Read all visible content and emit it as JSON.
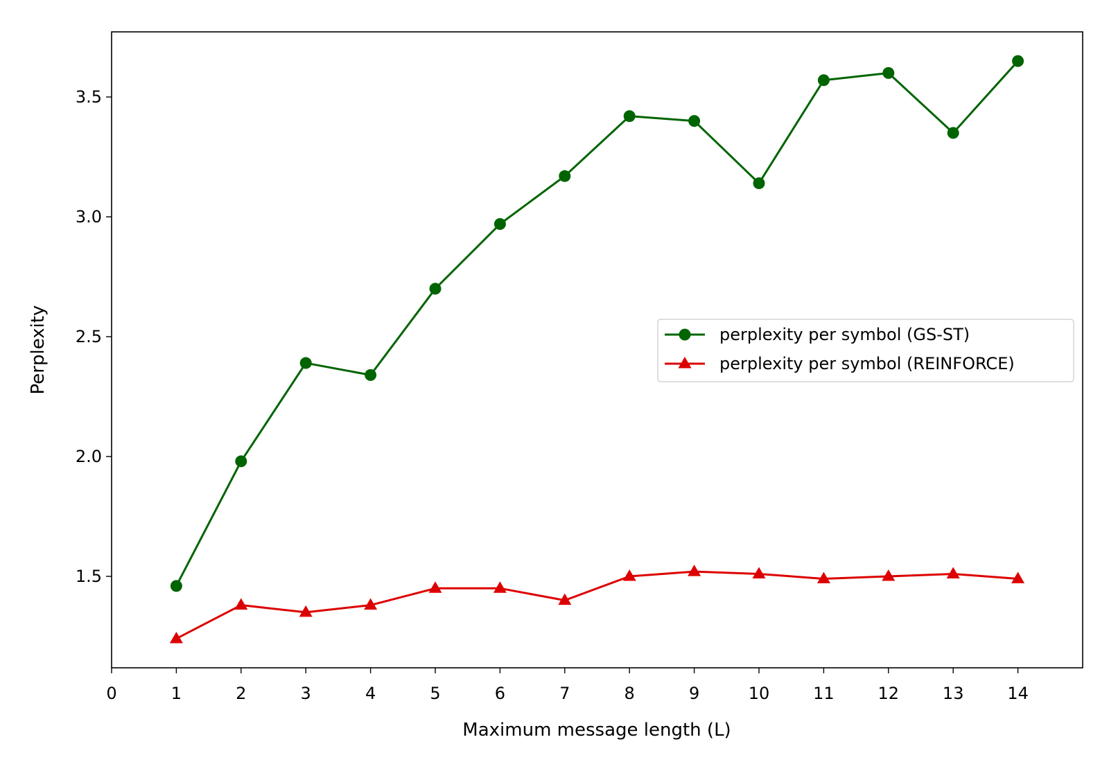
{
  "chart_data": {
    "type": "line",
    "xlabel": "Maximum message length (L)",
    "ylabel": "Perplexity",
    "xlim": [
      0,
      15
    ],
    "ylim": [
      1.12,
      3.77
    ],
    "xticks": [
      "0",
      "1",
      "2",
      "3",
      "4",
      "5",
      "6",
      "7",
      "8",
      "9",
      "10",
      "11",
      "12",
      "13",
      "14"
    ],
    "yticks": [
      "1.5",
      "2.0",
      "2.5",
      "3.0",
      "3.5"
    ],
    "grid": false,
    "legend_position": "center-right",
    "x": [
      1,
      2,
      3,
      4,
      5,
      6,
      7,
      8,
      9,
      10,
      11,
      12,
      13,
      14
    ],
    "series": [
      {
        "name": "perplexity per symbol (GS-ST)",
        "color": "#006400",
        "marker": "circle",
        "values": [
          1.46,
          1.98,
          2.39,
          2.34,
          2.7,
          2.97,
          3.17,
          3.42,
          3.4,
          3.14,
          3.57,
          3.6,
          3.35,
          3.65
        ]
      },
      {
        "name": "perplexity per symbol (REINFORCE)",
        "color": "#dd0000",
        "marker": "triangle",
        "values": [
          1.24,
          1.38,
          1.35,
          1.38,
          1.45,
          1.45,
          1.4,
          1.5,
          1.52,
          1.51,
          1.49,
          1.5,
          1.51,
          1.49
        ]
      }
    ]
  }
}
